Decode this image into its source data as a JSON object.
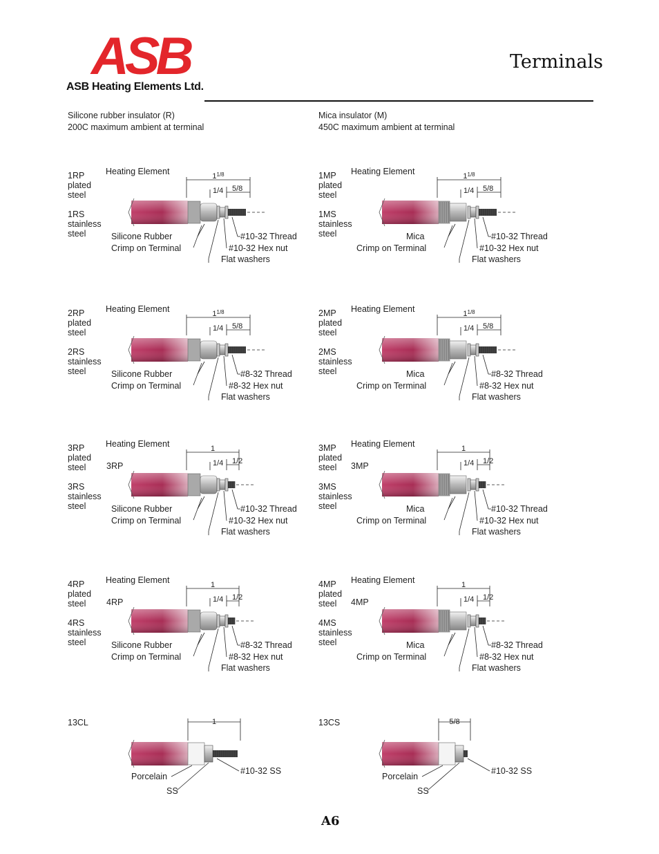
{
  "header": {
    "logo_text": "ASB",
    "company": "ASB Heating Elements Ltd.",
    "page_title": "Terminals",
    "page_number": "A6"
  },
  "colors": {
    "logo_red": "#e3262b",
    "element_body": "#b0305a"
  },
  "columns": [
    {
      "line1": "Silicone rubber insulator (R)",
      "line2": "200C maximum ambient at terminal"
    },
    {
      "line1": "Mica insulator (M)",
      "line2": "450C maximum ambient at terminal"
    }
  ],
  "rows": [
    [
      {
        "p1": "1RP",
        "p2": "plated",
        "p3": "steel",
        "s1": "1RS",
        "s2": "stainless",
        "s3": "steel",
        "heating": "Heating Element",
        "total": "1",
        "total_frac": "1/8",
        "a": "1/4",
        "b": "5/8",
        "ins": "Silicone Rubber",
        "crimp": "Crimp on Terminal",
        "thread": "#10-32 Thread",
        "nut": "#10-32 Hex nut",
        "washers": "Flat washers"
      },
      {
        "p1": "1MP",
        "p2": "plated",
        "p3": "steel",
        "s1": "1MS",
        "s2": "stainless",
        "s3": "steel",
        "heating": "Heating Element",
        "total": "1",
        "total_frac": "1/8",
        "a": "1/4",
        "b": "5/8",
        "ins": "Mica",
        "crimp": "Crimp on Terminal",
        "thread": "#10-32 Thread",
        "nut": "#10-32 Hex nut",
        "washers": "Flat washers"
      }
    ],
    [
      {
        "p1": "2RP",
        "p2": "plated",
        "p3": "steel",
        "s1": "2RS",
        "s2": "stainless",
        "s3": "steel",
        "heating": "Heating Element",
        "total": "1",
        "total_frac": "1/8",
        "a": "1/4",
        "b": "5/8",
        "ins": "Silicone Rubber",
        "crimp": "Crimp on Terminal",
        "thread": "#8-32 Thread",
        "nut": "#8-32 Hex nut",
        "washers": "Flat washers"
      },
      {
        "p1": "2MP",
        "p2": "plated",
        "p3": "steel",
        "s1": "2MS",
        "s2": "stainless",
        "s3": "steel",
        "heating": "Heating Element",
        "total": "1",
        "total_frac": "1/8",
        "a": "1/4",
        "b": "5/8",
        "ins": "Mica",
        "crimp": "Crimp on Terminal",
        "thread": "#8-32 Thread",
        "nut": "#8-32 Hex nut",
        "washers": "Flat washers"
      }
    ],
    [
      {
        "p1": "3RP",
        "p2": "plated",
        "p3": "steel",
        "s1": "3RS",
        "s2": "stainless",
        "s3": "steel",
        "tag": "3RP",
        "heating": "Heating Element",
        "total": "1",
        "total_frac": "",
        "a": "1/4",
        "b": "1/2",
        "ins": "Silicone Rubber",
        "crimp": "Crimp on Terminal",
        "thread": "#10-32 Thread",
        "nut": "#10-32 Hex nut",
        "washers": "Flat washers"
      },
      {
        "p1": "3MP",
        "p2": "plated",
        "p3": "steel",
        "s1": "3MS",
        "s2": "stainless",
        "s3": "steel",
        "tag": "3MP",
        "heating": "Heating Element",
        "total": "1",
        "total_frac": "",
        "a": "1/4",
        "b": "1/2",
        "ins": "Mica",
        "crimp": "Crimp on Terminal",
        "thread": "#10-32 Thread",
        "nut": "#10-32 Hex nut",
        "washers": "Flat washers"
      }
    ],
    [
      {
        "p1": "4RP",
        "p2": "plated",
        "p3": "steel",
        "s1": "4RS",
        "s2": "stainless",
        "s3": "steel",
        "tag": "4RP",
        "heating": "Heating Element",
        "total": "1",
        "total_frac": "",
        "a": "1/4",
        "b": "1/2",
        "ins": "Silicone  Rubber",
        "crimp": "Crimp on Terminal",
        "thread": "#8-32 Thread",
        "nut": "#8-32 Hex nut",
        "washers": "Flat washers"
      },
      {
        "p1": "4MP",
        "p2": "plated",
        "p3": "steel",
        "s1": "4MS",
        "s2": "stainless",
        "s3": "steel",
        "tag": "4MP",
        "heating": "Heating Element",
        "total": "1",
        "total_frac": "",
        "a": "1/4",
        "b": "1/2",
        "ins": "Mica",
        "crimp": "Crimp on Terminal",
        "thread": "#8-32 Thread",
        "nut": "#8-32 Hex nut",
        "washers": "Flat washers"
      }
    ]
  ],
  "bottom": [
    {
      "code": "13CL",
      "total": "1",
      "porcelain": "Porcelain",
      "ss": "SS",
      "thread": "#10-32 SS"
    },
    {
      "code": "13CS",
      "total": "5/8",
      "porcelain": "Porcelain",
      "ss": "SS",
      "thread": "#10-32 SS"
    }
  ]
}
